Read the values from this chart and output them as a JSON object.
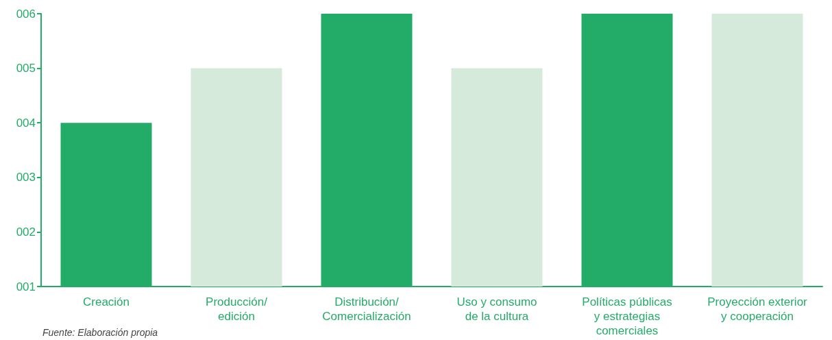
{
  "chart_data": {
    "type": "bar",
    "categories": [
      "Creación",
      "Producción/\nedición",
      "Distribución/\nComercialización",
      "Uso y consumo\nde la cultura",
      "Políticas públicas\ny estrategias\ncomerciales",
      "Proyección exterior\ny cooperación"
    ],
    "values": [
      4,
      5,
      6,
      5,
      6,
      6
    ],
    "colors": [
      "#23ab68",
      "#d5eadb",
      "#23ab68",
      "#d5eadb",
      "#23ab68",
      "#d5eadb"
    ],
    "ylim": [
      1,
      6
    ],
    "yticks": [
      {
        "value": 1,
        "label": "001"
      },
      {
        "value": 2,
        "label": "002"
      },
      {
        "value": 3,
        "label": "003"
      },
      {
        "value": 4,
        "label": "004"
      },
      {
        "value": 5,
        "label": "005"
      },
      {
        "value": 6,
        "label": "006"
      }
    ],
    "grid": false,
    "annotations": [
      "Fuente: Elaboración propia"
    ]
  }
}
